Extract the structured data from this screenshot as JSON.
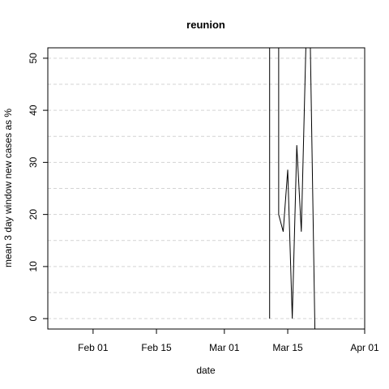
{
  "chart_data": {
    "type": "line",
    "title": "reunion",
    "xlabel": "date",
    "ylabel": "mean  3  day window new cases as %",
    "x_ticks": [
      "2020-02-01",
      "2020-02-15",
      "2020-03-01",
      "2020-03-15",
      "2020-04-01"
    ],
    "x_tick_labels": [
      "Feb 01",
      "Feb 15",
      "Mar 01",
      "Mar 15",
      "Apr 01"
    ],
    "xlim": [
      "2020-01-22",
      "2020-04-01"
    ],
    "y_ticks": [
      0,
      10,
      20,
      30,
      40,
      50
    ],
    "ylim": [
      -2,
      52
    ],
    "grid": "horizontal-dashed",
    "line_color": "#000000",
    "grid_color": "#d3d3d3",
    "series": [
      {
        "x": [
          "2020-03-11",
          "2020-03-11",
          "2020-03-13",
          "2020-03-13",
          "2020-03-14",
          "2020-03-15",
          "2020-03-16",
          "2020-03-17",
          "2020-03-18",
          "2020-03-19",
          "2020-03-19",
          "2020-03-20",
          "2020-03-21"
        ],
        "y": [
          0,
          52,
          52,
          20,
          16.7,
          28.6,
          0,
          33.3,
          16.7,
          52,
          52,
          52,
          -2
        ]
      }
    ]
  }
}
